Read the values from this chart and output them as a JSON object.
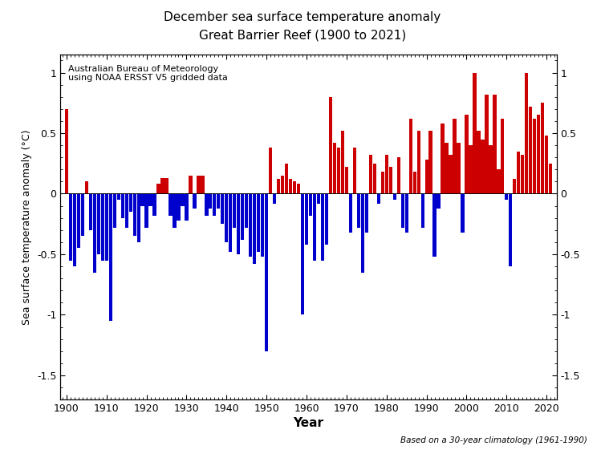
{
  "title_line1": "December sea surface temperature anomaly",
  "title_line2": "Great Barrier Reef (1900 to 2021)",
  "xlabel": "Year",
  "ylabel": "Sea surface temperature anomaly (°C)",
  "annotation_top": "Australian Bureau of Meteorology\nusing NOAA ERSST V5 gridded data",
  "annotation_bottom": "Based on a 30-year climatology (1961-1990)",
  "ylim": [
    -1.7,
    1.15
  ],
  "yticks": [
    -1.5,
    -1.0,
    -0.5,
    0,
    0.5,
    1.0
  ],
  "ytick_labels": [
    "-1.5",
    "-1",
    "-0.5",
    "0",
    "0.5",
    "1"
  ],
  "xlim": [
    1898.5,
    2022.5
  ],
  "xticks": [
    1900,
    1910,
    1920,
    1930,
    1940,
    1950,
    1960,
    1970,
    1980,
    1990,
    2000,
    2010,
    2020
  ],
  "color_positive": "#cc0000",
  "color_negative": "#0000cc",
  "background": "#ffffff",
  "years": [
    1900,
    1901,
    1902,
    1903,
    1904,
    1905,
    1906,
    1907,
    1908,
    1909,
    1910,
    1911,
    1912,
    1913,
    1914,
    1915,
    1916,
    1917,
    1918,
    1919,
    1920,
    1921,
    1922,
    1923,
    1924,
    1925,
    1926,
    1927,
    1928,
    1929,
    1930,
    1931,
    1932,
    1933,
    1934,
    1935,
    1936,
    1937,
    1938,
    1939,
    1940,
    1941,
    1942,
    1943,
    1944,
    1945,
    1946,
    1947,
    1948,
    1949,
    1950,
    1951,
    1952,
    1953,
    1954,
    1955,
    1956,
    1957,
    1958,
    1959,
    1960,
    1961,
    1962,
    1963,
    1964,
    1965,
    1966,
    1967,
    1968,
    1969,
    1970,
    1971,
    1972,
    1973,
    1974,
    1975,
    1976,
    1977,
    1978,
    1979,
    1980,
    1981,
    1982,
    1983,
    1984,
    1985,
    1986,
    1987,
    1988,
    1989,
    1990,
    1991,
    1992,
    1993,
    1994,
    1995,
    1996,
    1997,
    1998,
    1999,
    2000,
    2001,
    2002,
    2003,
    2004,
    2005,
    2006,
    2007,
    2008,
    2009,
    2010,
    2011,
    2012,
    2013,
    2014,
    2015,
    2016,
    2017,
    2018,
    2019,
    2020,
    2021
  ],
  "values": [
    0.7,
    -0.55,
    -0.6,
    -0.45,
    -0.35,
    0.1,
    -0.3,
    -0.65,
    -0.5,
    -0.55,
    -0.55,
    -1.05,
    -0.28,
    -0.05,
    -0.2,
    -0.28,
    -0.15,
    -0.35,
    -0.4,
    -0.1,
    -0.28,
    -0.1,
    -0.18,
    0.08,
    0.13,
    0.13,
    -0.18,
    -0.28,
    -0.22,
    -0.1,
    -0.22,
    0.15,
    -0.12,
    0.15,
    0.15,
    -0.18,
    -0.12,
    -0.18,
    -0.12,
    -0.25,
    -0.4,
    -0.48,
    -0.28,
    -0.5,
    -0.38,
    -0.28,
    -0.52,
    -0.58,
    -0.48,
    -0.52,
    -1.3,
    0.38,
    -0.08,
    0.12,
    0.15,
    0.25,
    0.12,
    0.1,
    0.08,
    -1.0,
    -0.42,
    -0.18,
    -0.55,
    -0.08,
    -0.55,
    -0.42,
    0.8,
    0.42,
    0.38,
    0.52,
    0.22,
    -0.32,
    0.38,
    -0.28,
    -0.65,
    -0.32,
    0.32,
    0.25,
    -0.08,
    0.18,
    0.32,
    0.22,
    -0.05,
    0.3,
    -0.28,
    -0.32,
    0.62,
    0.18,
    0.52,
    -0.28,
    0.28,
    0.52,
    -0.52,
    -0.12,
    0.58,
    0.42,
    0.32,
    0.62,
    0.42,
    -0.32,
    0.65,
    0.4,
    1.0,
    0.52,
    0.45,
    0.82,
    0.4,
    0.82,
    0.2,
    0.62,
    -0.05,
    -0.6,
    0.12,
    0.35,
    0.32,
    1.0,
    0.72,
    0.62,
    0.65,
    0.75,
    0.48,
    0.25
  ]
}
